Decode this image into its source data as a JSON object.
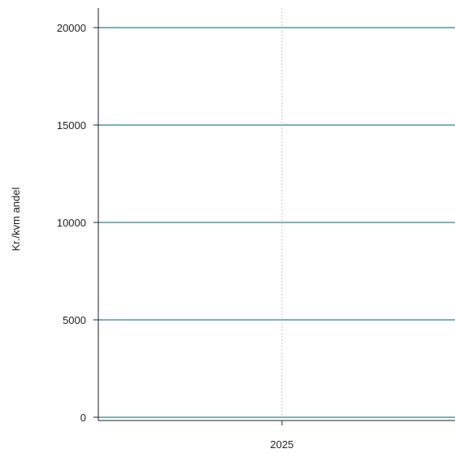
{
  "chart_data": {
    "type": "line",
    "title": "",
    "xlabel": "",
    "ylabel": "Kr./kvm andel",
    "x_categories": [
      "2025"
    ],
    "yticks": [
      0,
      5000,
      10000,
      15000,
      20000
    ],
    "ylim": [
      -200,
      21000
    ],
    "grid": {
      "horizontal": true,
      "vertical": true,
      "horizontal_color": "#7fb0b4",
      "vertical_color": "#b9c7cc"
    },
    "series": [],
    "legend": "none"
  }
}
